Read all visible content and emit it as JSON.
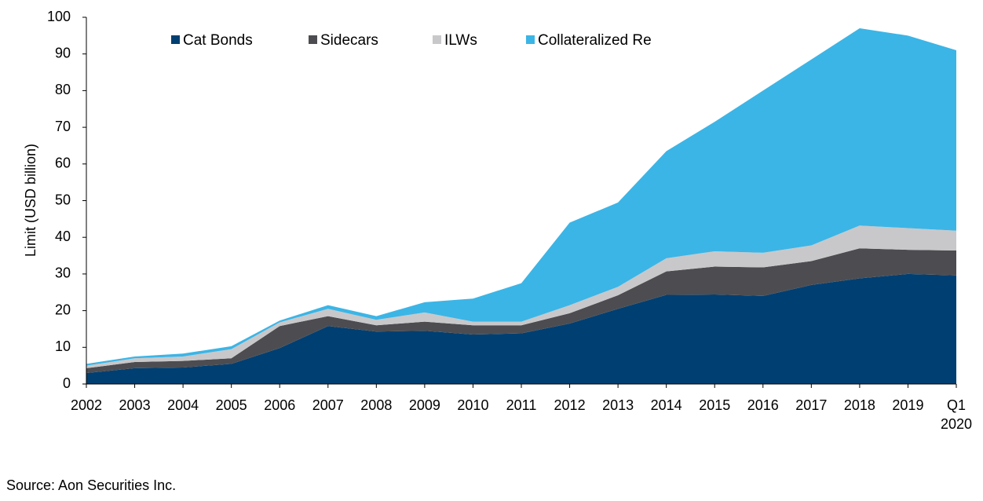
{
  "chart_data": {
    "type": "stacked-area",
    "y_label": "Limit (USD billion)",
    "source": "Source: Aon Securities Inc.",
    "categories": [
      "2002",
      "2003",
      "2004",
      "2005",
      "2006",
      "2007",
      "2008",
      "2009",
      "2010",
      "2011",
      "2012",
      "2013",
      "2014",
      "2015",
      "2016",
      "2017",
      "2018",
      "2019",
      "Q1 2020"
    ],
    "series": [
      {
        "name": "Cat Bonds",
        "color": "#003f72",
        "values": [
          3.0,
          4.3,
          4.5,
          5.5,
          9.8,
          15.8,
          14.3,
          14.5,
          13.5,
          13.8,
          16.5,
          20.5,
          24.3,
          24.4,
          24.0,
          27.0,
          28.8,
          30.0,
          29.6
        ]
      },
      {
        "name": "Sidecars",
        "color": "#4d4d51",
        "values": [
          1.3,
          1.7,
          1.8,
          1.5,
          6.0,
          2.7,
          1.7,
          2.5,
          2.5,
          2.2,
          2.8,
          3.7,
          6.4,
          7.6,
          7.8,
          6.5,
          8.2,
          6.6,
          6.8
        ]
      },
      {
        "name": "ILWs",
        "color": "#c8c8ca",
        "values": [
          0.7,
          1.0,
          1.2,
          2.5,
          1.0,
          2.0,
          1.5,
          2.5,
          1.0,
          1.0,
          2.2,
          2.3,
          3.6,
          4.2,
          4.0,
          4.3,
          6.2,
          5.9,
          5.4
        ]
      },
      {
        "name": "Collateralized Re",
        "color": "#3bb5e6",
        "values": [
          0.5,
          0.5,
          0.8,
          0.8,
          0.5,
          1.0,
          1.0,
          2.8,
          6.3,
          10.5,
          22.5,
          23.0,
          29.2,
          35.3,
          44.2,
          50.7,
          53.8,
          52.5,
          49.2
        ]
      }
    ],
    "ylim": [
      0,
      100
    ],
    "yticks": [
      0,
      10,
      20,
      30,
      40,
      50,
      60,
      70,
      80,
      90,
      100
    ],
    "grid": false,
    "legend": "top"
  }
}
